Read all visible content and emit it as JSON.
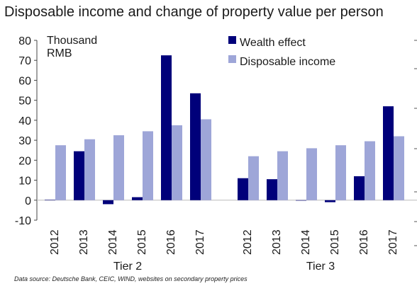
{
  "title": "Disposable income and change of property value per person",
  "source": "Data source: Deutsche Bank, CEIC, WIND, websites on secondary property prices",
  "chart_data": {
    "type": "bar",
    "unit_label_line1": "Thousand",
    "unit_label_line2": "RMB",
    "ylim": [
      -10,
      80
    ],
    "yticks": [
      -10,
      0,
      10,
      20,
      30,
      40,
      50,
      60,
      70,
      80
    ],
    "grid": false,
    "legend_position": "top-right",
    "groups": [
      {
        "name": "Tier 2",
        "categories": [
          "2012",
          "2013",
          "2014",
          "2015",
          "2016",
          "2017"
        ]
      },
      {
        "name": "Tier 3",
        "categories": [
          "2012",
          "2013",
          "2014",
          "2015",
          "2016",
          "2017"
        ]
      }
    ],
    "series": [
      {
        "name": "Wealth effect",
        "color": "#00007a",
        "values": [
          [
            0.2,
            24.5,
            -2,
            1.5,
            72.5,
            53.5
          ],
          [
            11,
            10.5,
            0,
            -1,
            12,
            47
          ]
        ]
      },
      {
        "name": "Disposable income",
        "color": "#9ea6d8",
        "values": [
          [
            27.5,
            30.5,
            32.5,
            34.5,
            37.5,
            40.5
          ],
          [
            22,
            24.5,
            26,
            27.5,
            29.5,
            32
          ]
        ]
      }
    ]
  }
}
